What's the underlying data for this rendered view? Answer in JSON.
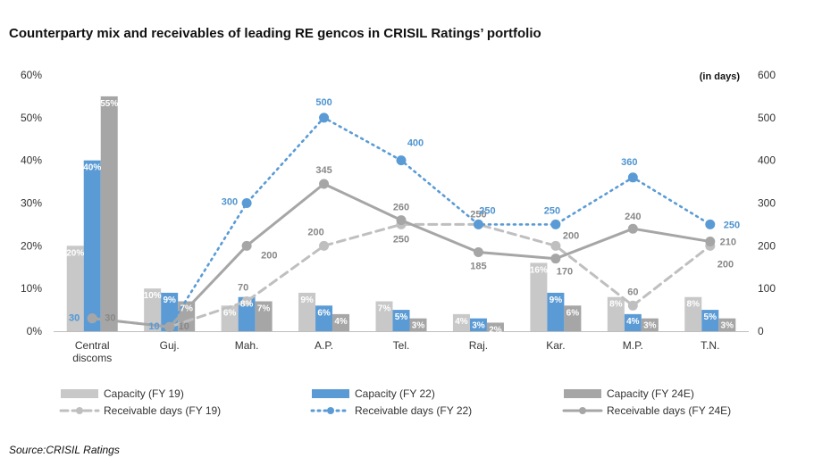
{
  "chart_data": {
    "type": "bar",
    "title": "Counterparty mix and receivables of leading RE gencos in CRISIL Ratings’ portfolio",
    "source": "Source:CRISIL Ratings",
    "unit_note": "(in days)",
    "categories": [
      "Central discoms",
      "Guj.",
      "Mah.",
      "A.P.",
      "Tel.",
      "Raj.",
      "Kar.",
      "M.P.",
      "T.N."
    ],
    "y_left": {
      "min": 0,
      "max": 60,
      "ticks": [
        "0%",
        "10%",
        "20%",
        "30%",
        "40%",
        "50%",
        "60%"
      ]
    },
    "y_right": {
      "min": 0,
      "max": 600,
      "ticks": [
        "0",
        "100",
        "200",
        "300",
        "400",
        "500",
        "600"
      ]
    },
    "bar_series": [
      {
        "name": "Capacity (FY 19)",
        "color": "#c8c8c8",
        "labelColor": "#ffffff",
        "values": [
          20,
          10,
          6,
          9,
          7,
          4,
          16,
          8,
          8
        ],
        "labels": [
          "20%",
          "10%",
          "6%",
          "9%",
          "7%",
          "4%",
          "16%",
          "8%",
          "8%"
        ]
      },
      {
        "name": "Capacity (FY 22)",
        "color": "#5b9bd5",
        "labelColor": "#ffffff",
        "values": [
          40,
          9,
          8,
          6,
          5,
          3,
          9,
          4,
          5
        ],
        "labels": [
          "40%",
          "9%",
          "8%",
          "6%",
          "5%",
          "3%",
          "9%",
          "4%",
          "5%"
        ]
      },
      {
        "name": "Capacity (FY 24E)",
        "color": "#a6a6a6",
        "labelColor": "#ffffff",
        "values": [
          55,
          7,
          7,
          4,
          3,
          2,
          6,
          3,
          3
        ],
        "labels": [
          "55%",
          "7%",
          "7%",
          "4%",
          "3%",
          "2%",
          "6%",
          "3%",
          "3%"
        ]
      }
    ],
    "line_series": [
      {
        "name": "Receivable days (FY 19)",
        "color": "#bfbfbf",
        "style": "dashed",
        "values": [
          30,
          10,
          70,
          200,
          250,
          250,
          200,
          60,
          200
        ],
        "labels": [
          "30",
          "10",
          "70",
          "200",
          "250",
          "250",
          "200",
          "60",
          "200"
        ]
      },
      {
        "name": "Receivable days (FY 22)",
        "color": "#5b9bd5",
        "style": "dotted",
        "values": [
          30,
          10,
          300,
          500,
          400,
          250,
          250,
          360,
          250
        ],
        "labels": [
          "30",
          "10",
          "300",
          "500",
          "400",
          "250",
          "250",
          "360",
          "250"
        ]
      },
      {
        "name": "Receivable days (FY 24E)",
        "color": "#a6a6a6",
        "style": "solid",
        "values": [
          30,
          10,
          200,
          345,
          260,
          185,
          170,
          240,
          210
        ],
        "labels": [
          "30",
          "10",
          "200",
          "345",
          "260",
          "185",
          "170",
          "240",
          "210"
        ]
      }
    ]
  }
}
